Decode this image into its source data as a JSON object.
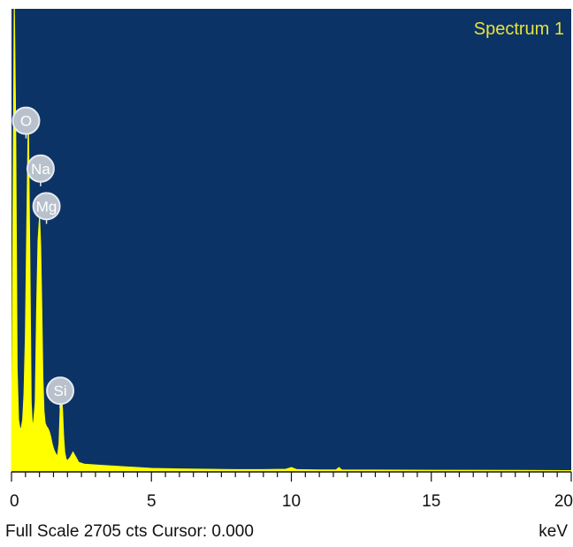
{
  "colors": {
    "plot_background": "#0b3366",
    "spectrum_fill": "#ffff00",
    "label_text": "#e8e23a",
    "marker_fill": "#b8c1cc",
    "marker_stroke": "#e6eaef",
    "axis": "#111111"
  },
  "chart_data": {
    "type": "area",
    "title": "Spectrum 1",
    "xlabel": "keV",
    "xlim": [
      0,
      20
    ],
    "ylim": [
      0,
      2705
    ],
    "x_ticks": [
      "0",
      "5",
      "10",
      "15",
      "20"
    ],
    "x_tick_values": [
      0,
      5,
      10,
      15,
      20
    ],
    "series": [
      {
        "x": [
          0.0,
          0.1,
          0.15,
          0.2,
          0.25,
          0.3,
          0.35,
          0.4,
          0.45,
          0.5,
          0.55,
          0.6,
          0.65,
          0.7,
          0.75,
          0.8,
          0.85,
          0.9,
          0.95,
          1.0,
          1.04,
          1.08,
          1.12,
          1.16,
          1.2,
          1.25,
          1.3,
          1.35,
          1.4,
          1.45,
          1.5,
          1.55,
          1.6,
          1.65,
          1.7,
          1.74,
          1.78,
          1.82,
          1.86,
          1.9,
          1.95,
          2.0,
          2.1,
          2.2,
          2.3,
          2.4,
          2.6,
          3.0,
          3.5,
          4.0,
          4.5,
          5.0,
          6.0,
          7.0,
          8.0,
          9.0,
          9.8,
          10.0,
          10.2,
          11.0,
          11.6,
          11.7,
          11.8,
          13.0,
          15.0,
          18.0,
          20.0
        ],
        "y": [
          0,
          2705,
          2000,
          600,
          300,
          250,
          250,
          300,
          450,
          800,
          1450,
          2050,
          1300,
          400,
          250,
          300,
          400,
          950,
          1350,
          1480,
          1320,
          950,
          550,
          350,
          280,
          260,
          250,
          230,
          200,
          160,
          130,
          110,
          95,
          90,
          160,
          360,
          470,
          360,
          200,
          110,
          70,
          60,
          80,
          110,
          80,
          50,
          40,
          35,
          30,
          25,
          20,
          15,
          12,
          10,
          8,
          8,
          10,
          20,
          8,
          6,
          6,
          20,
          6,
          5,
          4,
          3,
          2
        ]
      }
    ],
    "peaks": [
      {
        "label": "O",
        "x": 0.52,
        "y": 2050
      },
      {
        "label": "Na",
        "x": 1.04,
        "y": 1770
      },
      {
        "label": "Mg",
        "x": 1.25,
        "y": 1550
      },
      {
        "label": "Si",
        "x": 1.74,
        "y": 470
      }
    ]
  },
  "status": {
    "left": "Full Scale 2705 cts Cursor: 0.000",
    "right": "keV"
  }
}
